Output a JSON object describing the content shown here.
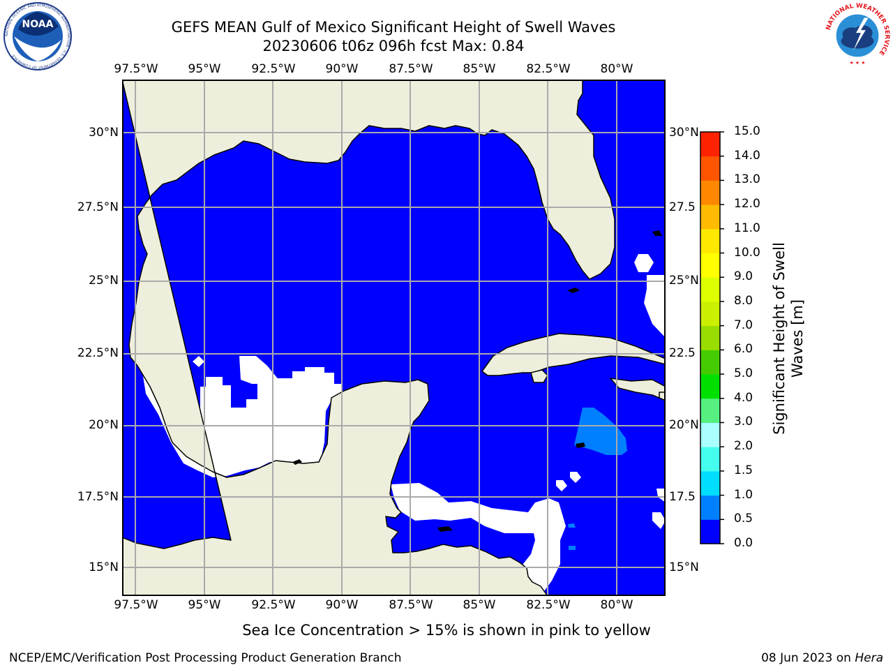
{
  "title": {
    "line1": "GEFS MEAN Gulf of Mexico Significant Height of Swell Waves",
    "line2": "20230606 t06z 096h fcst   Max: 0.84"
  },
  "axes": {
    "lon_labels": [
      "97.5°W",
      "95°W",
      "92.5°W",
      "90°W",
      "87.5°W",
      "85°W",
      "82.5°W",
      "80°W"
    ],
    "lat_labels_left": [
      "30°N",
      "27.5°N",
      "25°N",
      "22.5°N",
      "20°N",
      "17.5°N",
      "15°N"
    ],
    "lat_labels_right": [
      "30°N",
      "27.5",
      "25°N",
      "22.5",
      "20°N",
      "17.5",
      "15°N"
    ],
    "lon_range": [
      -98,
      -78.2
    ],
    "lat_range": [
      14,
      31.8
    ],
    "grid": true
  },
  "colorbar": {
    "title": "Significant Height of Swell Waves [m]",
    "labels": [
      "15.0",
      "14.0",
      "13.0",
      "12.0",
      "11.0",
      "10.0",
      "9.0",
      "8.0",
      "7.0",
      "6.0",
      "5.0",
      "4.0",
      "3.0",
      "2.0",
      "1.5",
      "1.0",
      "0.5",
      "0.0"
    ],
    "levels": [
      0.0,
      0.5,
      1.0,
      1.5,
      2.0,
      3.0,
      4.0,
      5.0,
      6.0,
      7.0,
      8.0,
      9.0,
      10.0,
      11.0,
      12.0,
      13.0,
      14.0,
      15.0
    ],
    "colors": [
      "#0000ff",
      "#0080ff",
      "#00ddff",
      "#44ffee",
      "#aaffff",
      "#55f080",
      "#00e000",
      "#44cc00",
      "#99dd00",
      "#ccee00",
      "#ddff00",
      "#ffff00",
      "#ffe800",
      "#ffbb00",
      "#ff8800",
      "#ff5500",
      "#ff2200"
    ]
  },
  "field": {
    "max": 0.84,
    "land_color": "#eeeedd",
    "ocean_color": "#0000ff",
    "moderate_color": "#0080ff",
    "missing_color": "#ffffff"
  },
  "note": "Sea Ice Concentration > 15% is shown in pink to yellow",
  "footer": {
    "left": "NCEP/EMC/Verification Post Processing Product Generation Branch",
    "date": "08 Jun 2023 on ",
    "machine": "Hera"
  },
  "logos": {
    "noaa_text": "NOAA",
    "noaa_ring": "NATIONAL OCEANIC AND ATMOSPHERIC ADMINISTRATION · U.S. DEPARTMENT OF COMMERCE",
    "nws_ring": "NATIONAL WEATHER SERVICE"
  }
}
